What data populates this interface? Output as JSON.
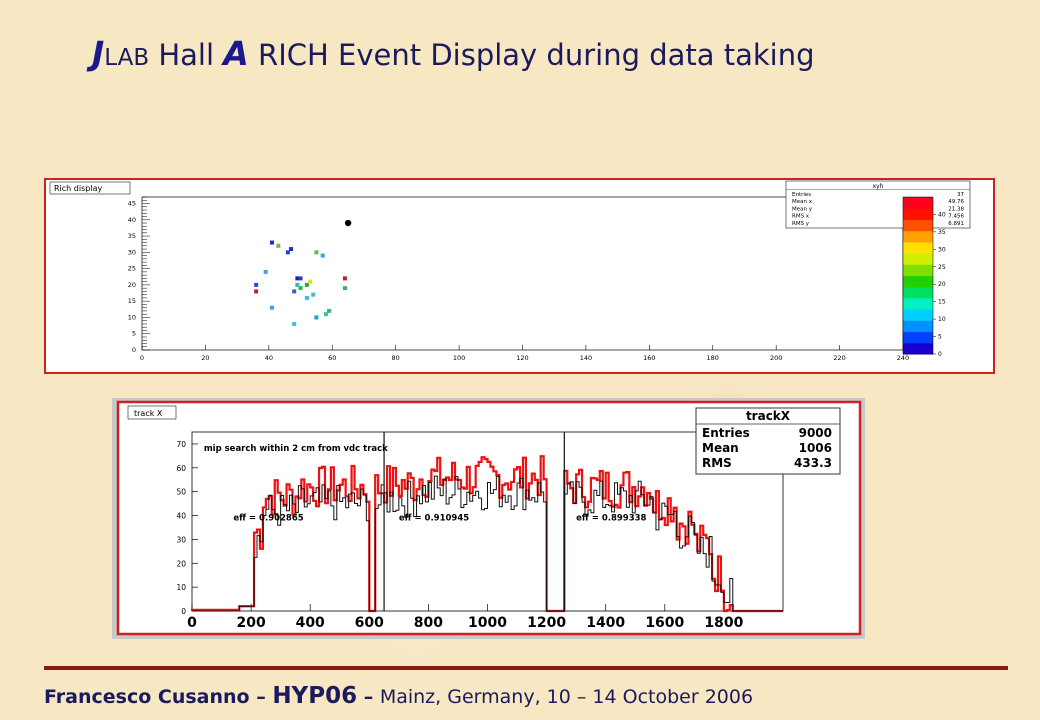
{
  "slide": {
    "title": {
      "j": "J",
      "lab": "LAB",
      "hall": " Hall ",
      "a": "A",
      "rest": " RICH Event Display during data taking"
    },
    "footer": {
      "name": "Francesco Cusanno",
      "dash1": " – ",
      "conf": "HYP06",
      "dash2": " – ",
      "place": "Mainz, Germany, 10 – 14 October 2006"
    }
  },
  "chart_data": [
    {
      "type": "scatter",
      "panel_title": "Rich display",
      "xlim": [
        0,
        240
      ],
      "ylim": [
        0,
        47
      ],
      "x_ticks": [
        0,
        20,
        40,
        60,
        80,
        100,
        120,
        140,
        160,
        180,
        200,
        220,
        240
      ],
      "y_ticks": [
        0,
        5,
        10,
        15,
        20,
        25,
        30,
        35,
        40,
        45
      ],
      "stats": {
        "title": "xyh",
        "rows": [
          {
            "label": "Entries",
            "value": "37"
          },
          {
            "label": "Mean x",
            "value": "49.76"
          },
          {
            "label": "Mean y",
            "value": "21.38"
          },
          {
            "label": "RMS x",
            "value": "7.456"
          },
          {
            "label": "RMS y",
            "value": "6.891"
          }
        ]
      },
      "colorbar": {
        "ticks": [
          0,
          5,
          10,
          15,
          20,
          25,
          30,
          35,
          40
        ],
        "range": [
          0,
          45
        ],
        "colors": [
          "#1a00d0",
          "#0040ff",
          "#0090ff",
          "#00d0ff",
          "#00f0c0",
          "#00e060",
          "#20d000",
          "#80e000",
          "#d0f000",
          "#ffe000",
          "#ffa000",
          "#ff5000",
          "#ff1000",
          "#ff0020"
        ]
      },
      "special_point": {
        "x": 65,
        "y": 39
      },
      "points": [
        {
          "x": 41,
          "y": 33,
          "c": "#1a30c0"
        },
        {
          "x": 43,
          "y": 32,
          "c": "#6fc040"
        },
        {
          "x": 46,
          "y": 30,
          "c": "#2040d0"
        },
        {
          "x": 47,
          "y": 31,
          "c": "#1a30c0"
        },
        {
          "x": 55,
          "y": 30,
          "c": "#60c040"
        },
        {
          "x": 57,
          "y": 29,
          "c": "#40a0e0"
        },
        {
          "x": 39,
          "y": 24,
          "c": "#40a0e0"
        },
        {
          "x": 36,
          "y": 20,
          "c": "#2050d0"
        },
        {
          "x": 36,
          "y": 18,
          "c": "#c02020"
        },
        {
          "x": 49,
          "y": 22,
          "c": "#1a20b0"
        },
        {
          "x": 50,
          "y": 22,
          "c": "#2040c0"
        },
        {
          "x": 49,
          "y": 20,
          "c": "#40b0c0"
        },
        {
          "x": 50,
          "y": 19,
          "c": "#20c040"
        },
        {
          "x": 52,
          "y": 20,
          "c": "#30a040"
        },
        {
          "x": 53,
          "y": 21,
          "c": "#e0e020"
        },
        {
          "x": 48,
          "y": 18,
          "c": "#3060d0"
        },
        {
          "x": 54,
          "y": 17,
          "c": "#40c0c0"
        },
        {
          "x": 64,
          "y": 22,
          "c": "#c02020"
        },
        {
          "x": 64,
          "y": 19,
          "c": "#40b060"
        },
        {
          "x": 52,
          "y": 16,
          "c": "#30c0e0"
        },
        {
          "x": 41,
          "y": 13,
          "c": "#40a0e0"
        },
        {
          "x": 58,
          "y": 11,
          "c": "#40c090"
        },
        {
          "x": 59,
          "y": 12,
          "c": "#30b0a0"
        },
        {
          "x": 55,
          "y": 10,
          "c": "#20a0c0"
        },
        {
          "x": 48,
          "y": 8,
          "c": "#40c0e0"
        }
      ]
    },
    {
      "type": "histogram",
      "panel_title": "track X",
      "annotation": "mip search within 2 cm from vdc track",
      "xlim": [
        0,
        2000
      ],
      "ylim": [
        0,
        75
      ],
      "x_ticks": [
        0,
        200,
        400,
        600,
        800,
        1000,
        1200,
        1400,
        1600,
        1800
      ],
      "y_ticks": [
        0,
        10,
        20,
        30,
        40,
        50,
        60,
        70
      ],
      "stats": {
        "title": "trackX",
        "rows": [
          {
            "label": "Entries",
            "value": "9000"
          },
          {
            "label": "Mean",
            "value": "1006"
          },
          {
            "label": "RMS",
            "value": "433.3"
          }
        ]
      },
      "efficiencies": [
        {
          "label": "eff = 0.902865",
          "x": 140,
          "y": 38
        },
        {
          "label": "eff = 0.910945",
          "x": 700,
          "y": 38
        },
        {
          "label": "eff = 0.899338",
          "x": 1300,
          "y": 38
        }
      ],
      "bin_width": 10,
      "regions": [
        {
          "x0": 0,
          "x1": 160,
          "black": 0,
          "red": 0.5
        },
        {
          "x0": 160,
          "x1": 210,
          "black": 2,
          "red": 2
        },
        {
          "x0": 210,
          "x1": 240,
          "black": 30,
          "red": 33
        },
        {
          "x0": 240,
          "x1": 360,
          "black": 42,
          "red": 48
        },
        {
          "x0": 360,
          "x1": 600,
          "black": 45,
          "red": 52
        },
        {
          "x0": 600,
          "x1": 620,
          "black": 0,
          "red": 0
        },
        {
          "x0": 620,
          "x1": 650,
          "black": 45,
          "red": 52
        },
        {
          "x0": 650,
          "x1": 760,
          "black": 47,
          "red": 53
        },
        {
          "x0": 760,
          "x1": 1200,
          "black": 50,
          "red": 56
        },
        {
          "x0": 1200,
          "x1": 1260,
          "black": 0,
          "red": 0
        },
        {
          "x0": 1260,
          "x1": 1560,
          "black": 47,
          "red": 52
        },
        {
          "x0": 1560,
          "x1": 1640,
          "black": 40,
          "red": 45
        },
        {
          "x0": 1640,
          "x1": 1700,
          "black": 33,
          "red": 37
        },
        {
          "x0": 1700,
          "x1": 1760,
          "black": 25,
          "red": 28
        },
        {
          "x0": 1760,
          "x1": 1800,
          "black": 15,
          "red": 16
        },
        {
          "x0": 1800,
          "x1": 1830,
          "black": 6,
          "red": 6
        },
        {
          "x0": 1830,
          "x1": 2000,
          "black": 0,
          "red": 0
        }
      ],
      "cut_lines": [
        650,
        1260
      ]
    }
  ]
}
